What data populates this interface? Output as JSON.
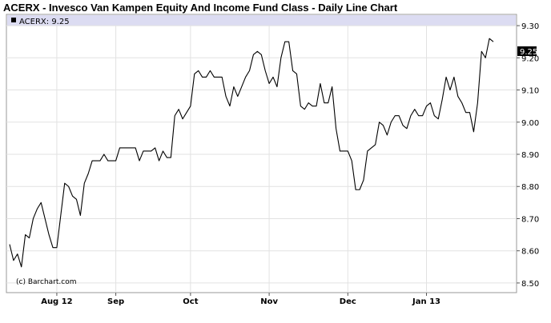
{
  "chart_data": {
    "type": "line",
    "title": "ACERX - Invesco Van Kampen Equity And  Income Fund Class - Daily Line Chart",
    "legend": {
      "label": "ACERX: 9.25",
      "placement": "top-left"
    },
    "last_value_label": "9.25",
    "credit": "(c) Barchart.com",
    "ylim": [
      8.47,
      9.335
    ],
    "y_ticks": [
      8.5,
      8.6,
      8.7,
      8.8,
      8.9,
      9.0,
      9.1,
      9.2,
      9.3
    ],
    "y_tick_labels": [
      "8.50",
      "8.60",
      "8.70",
      "8.80",
      "8.90",
      "9.00",
      "9.10",
      "9.20",
      "9.30"
    ],
    "x_ticks": [
      {
        "label": "Aug 12",
        "index": 12
      },
      {
        "label": "Sep",
        "index": 27
      },
      {
        "label": "Oct",
        "index": 46
      },
      {
        "label": "Nov",
        "index": 66
      },
      {
        "label": "Dec",
        "index": 86
      },
      {
        "label": "Jan 13",
        "index": 106
      }
    ],
    "grid": true,
    "series": [
      {
        "color": "#000000",
        "values": [
          8.62,
          8.57,
          8.59,
          8.55,
          8.65,
          8.64,
          8.7,
          8.73,
          8.75,
          8.7,
          8.65,
          8.61,
          8.61,
          8.71,
          8.81,
          8.8,
          8.77,
          8.76,
          8.71,
          8.81,
          8.84,
          8.88,
          8.88,
          8.88,
          8.9,
          8.88,
          8.88,
          8.88,
          8.92,
          8.92,
          8.92,
          8.92,
          8.92,
          8.88,
          8.91,
          8.91,
          8.91,
          8.92,
          8.88,
          8.91,
          8.89,
          8.89,
          9.02,
          9.04,
          9.01,
          9.03,
          9.05,
          9.15,
          9.16,
          9.14,
          9.14,
          9.16,
          9.14,
          9.14,
          9.14,
          9.08,
          9.05,
          9.11,
          9.08,
          9.11,
          9.14,
          9.16,
          9.21,
          9.22,
          9.21,
          9.16,
          9.12,
          9.14,
          9.11,
          9.2,
          9.25,
          9.25,
          9.16,
          9.15,
          9.05,
          9.04,
          9.06,
          9.05,
          9.05,
          9.12,
          9.06,
          9.06,
          9.11,
          8.98,
          8.91,
          8.91,
          8.91,
          8.88,
          8.79,
          8.79,
          8.82,
          8.91,
          8.92,
          8.93,
          9.0,
          8.99,
          8.96,
          9.0,
          9.02,
          9.02,
          8.99,
          8.98,
          9.02,
          9.04,
          9.02,
          9.02,
          9.05,
          9.06,
          9.02,
          9.01,
          9.07,
          9.14,
          9.1,
          9.14,
          9.08,
          9.06,
          9.03,
          9.03,
          8.97,
          9.06,
          9.22,
          9.2,
          9.26,
          9.25
        ]
      }
    ]
  }
}
